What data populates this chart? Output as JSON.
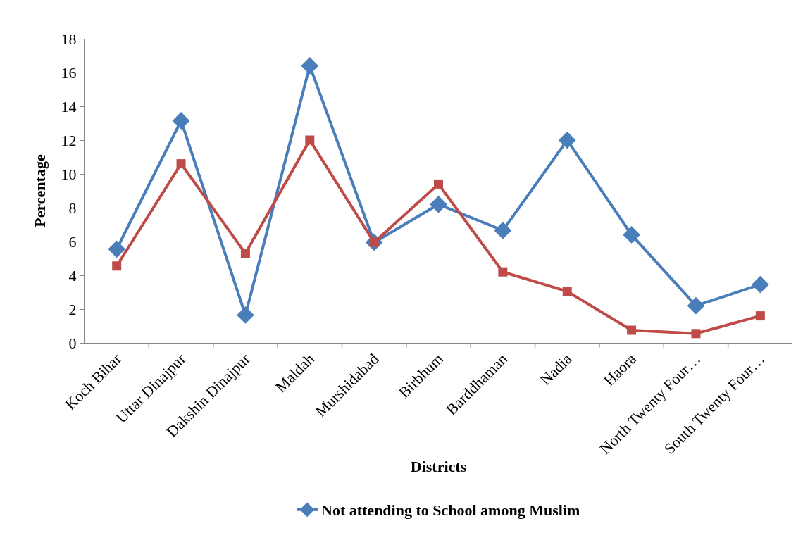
{
  "chart_data": {
    "type": "line",
    "xlabel": "Districts",
    "ylabel": "Percentage",
    "categories": [
      "Koch Bihar",
      "Uttar Dinajpur",
      "Dakshin Dinajpur",
      "Maldah",
      "Murshidabad",
      "Birbhum",
      "Barddhaman",
      "Nadia",
      "Haora",
      "North Twenty Four…",
      "South Twenty Four…"
    ],
    "series": [
      {
        "name": "Not attending to School among Muslim",
        "color": "#4a7ebb",
        "marker": "diamond",
        "values": [
          5.55,
          13.15,
          1.65,
          16.4,
          5.95,
          8.2,
          6.65,
          12.0,
          6.4,
          2.2,
          3.45
        ]
      },
      {
        "color": "#be4b48",
        "marker": "square",
        "values": [
          4.55,
          10.6,
          5.3,
          12.0,
          5.95,
          9.4,
          4.2,
          3.05,
          0.75,
          0.55,
          1.6
        ]
      }
    ],
    "ylim": [
      0,
      18
    ],
    "yticks": [
      0,
      2,
      4,
      6,
      8,
      10,
      12,
      14,
      16,
      18
    ],
    "legend": "bottom",
    "line_style": "solid"
  }
}
